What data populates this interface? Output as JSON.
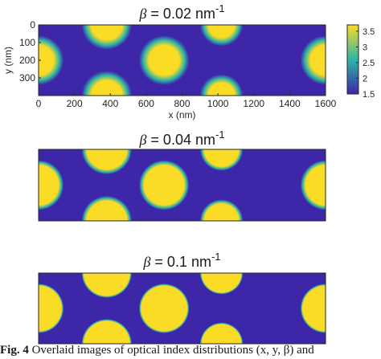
{
  "chart_data": [
    {
      "type": "heatmap",
      "title": {
        "prefix": "β = 0.02 nm",
        "exponent": "-1"
      },
      "xlabel": "x (nm)",
      "ylabel": "y (nm)",
      "xlim": [
        0,
        1600
      ],
      "ylim": [
        0,
        400
      ],
      "y_reversed": true,
      "xticks": [
        "0",
        "200",
        "400",
        "600",
        "800",
        "1000",
        "1200",
        "1400",
        "1600"
      ],
      "yticks": [
        "0",
        "100",
        "200",
        "300"
      ],
      "spots": [
        {
          "x": 0,
          "y": 200,
          "r": 140
        },
        {
          "x": 380,
          "y": 0,
          "r": 140
        },
        {
          "x": 380,
          "y": 400,
          "r": 140
        },
        {
          "x": 700,
          "y": 200,
          "r": 140
        },
        {
          "x": 1020,
          "y": 0,
          "r": 120
        },
        {
          "x": 1020,
          "y": 400,
          "r": 120
        },
        {
          "x": 1600,
          "y": 200,
          "r": 140
        }
      ],
      "edge_width": 55,
      "colorbar": {
        "min": 1.5,
        "max": 3.7,
        "ticks": [
          "1.5",
          "2",
          "2.5",
          "3",
          "3.5"
        ],
        "tick_values": [
          1.5,
          2,
          2.5,
          3,
          3.5
        ]
      }
    },
    {
      "type": "heatmap",
      "title": {
        "prefix": "β = 0.04 nm",
        "exponent": "-1"
      },
      "xlim": [
        0,
        1600
      ],
      "ylim": [
        0,
        400
      ],
      "spots": [
        {
          "x": 0,
          "y": 200,
          "r": 140
        },
        {
          "x": 380,
          "y": 0,
          "r": 140
        },
        {
          "x": 380,
          "y": 400,
          "r": 140
        },
        {
          "x": 700,
          "y": 200,
          "r": 140
        },
        {
          "x": 1020,
          "y": 0,
          "r": 120
        },
        {
          "x": 1020,
          "y": 400,
          "r": 120
        },
        {
          "x": 1600,
          "y": 200,
          "r": 140
        }
      ],
      "edge_width": 28
    },
    {
      "type": "heatmap",
      "title": {
        "prefix": "β = 0.1 nm",
        "exponent": "-1"
      },
      "xlim": [
        0,
        1600
      ],
      "ylim": [
        0,
        400
      ],
      "spots": [
        {
          "x": 0,
          "y": 200,
          "r": 140
        },
        {
          "x": 380,
          "y": 0,
          "r": 140
        },
        {
          "x": 380,
          "y": 400,
          "r": 140
        },
        {
          "x": 700,
          "y": 200,
          "r": 140
        },
        {
          "x": 1020,
          "y": 0,
          "r": 120
        },
        {
          "x": 1020,
          "y": 400,
          "r": 120
        },
        {
          "x": 1600,
          "y": 200,
          "r": 140
        }
      ],
      "edge_width": 12
    }
  ],
  "colors": {
    "low": "#3e26a8",
    "mid": "#2db5a7",
    "high": "#fadb25"
  },
  "caption": {
    "label": "Fig. 4",
    "text": " Overlaid images of optical index distributions (x, y, β) and"
  }
}
